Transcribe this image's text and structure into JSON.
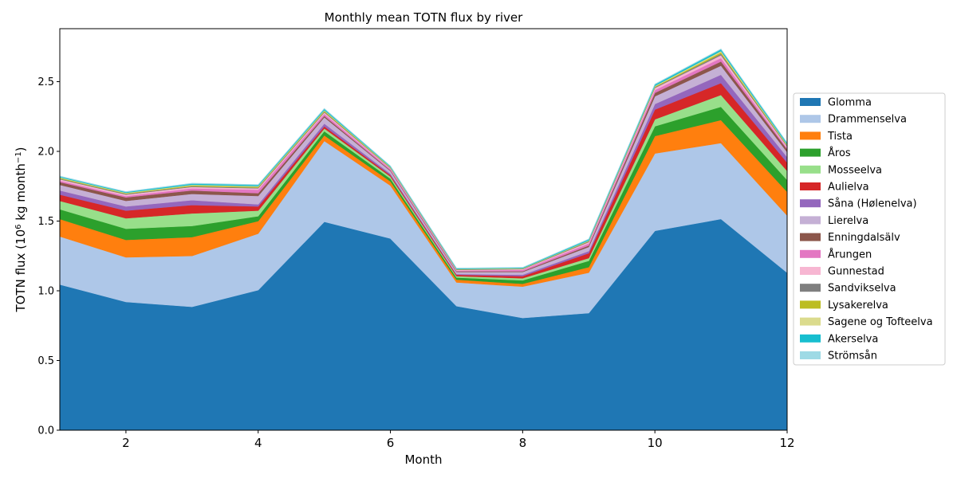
{
  "chart_data": {
    "type": "area",
    "stacked": true,
    "title": "Monthly mean TOTN flux by river",
    "xlabel": "Month",
    "ylabel_main": "TOTN flux (10",
    "ylabel_sup1": "6",
    "ylabel_mid": " kg month",
    "ylabel_sup2": "−1",
    "ylabel_end": ")",
    "x": [
      1,
      2,
      3,
      4,
      5,
      6,
      7,
      8,
      9,
      10,
      11,
      12
    ],
    "xlim": [
      1,
      12
    ],
    "ylim": [
      0,
      2.88
    ],
    "x_ticks": [
      2,
      4,
      6,
      8,
      10,
      12
    ],
    "x_tick_labels": [
      "2",
      "4",
      "6",
      "8",
      "10",
      "12"
    ],
    "y_ticks": [
      0,
      0.5,
      1.0,
      1.5,
      2.0,
      2.5
    ],
    "y_tick_labels": [
      "0.0",
      "0.5",
      "1.0",
      "1.5",
      "2.0",
      "2.5"
    ],
    "legend_position": "right",
    "grid": false,
    "series": [
      {
        "name": "Glomma",
        "color": "#1f77b4",
        "values": [
          1.045,
          0.92,
          0.885,
          1.005,
          1.495,
          1.375,
          0.89,
          0.805,
          0.84,
          1.43,
          1.515,
          1.13
        ]
      },
      {
        "name": "Drammenselva",
        "color": "#aec7e8",
        "values": [
          0.345,
          0.32,
          0.365,
          0.405,
          0.58,
          0.38,
          0.17,
          0.225,
          0.29,
          0.555,
          0.545,
          0.41
        ]
      },
      {
        "name": "Tista",
        "color": "#ff7f0e",
        "values": [
          0.125,
          0.125,
          0.135,
          0.09,
          0.04,
          0.03,
          0.02,
          0.02,
          0.04,
          0.125,
          0.165,
          0.17
        ]
      },
      {
        "name": "Åros",
        "color": "#2ca02c",
        "values": [
          0.07,
          0.08,
          0.08,
          0.035,
          0.03,
          0.02,
          0.015,
          0.025,
          0.045,
          0.07,
          0.095,
          0.085
        ]
      },
      {
        "name": "Mosseelva",
        "color": "#98df8a",
        "values": [
          0.06,
          0.075,
          0.09,
          0.04,
          0.02,
          0.015,
          0.01,
          0.015,
          0.02,
          0.05,
          0.085,
          0.065
        ]
      },
      {
        "name": "Aulielva",
        "color": "#d62728",
        "values": [
          0.045,
          0.055,
          0.06,
          0.03,
          0.015,
          0.01,
          0.01,
          0.015,
          0.035,
          0.07,
          0.085,
          0.06
        ]
      },
      {
        "name": "Såna (Hølenelva)",
        "color": "#9467bd",
        "values": [
          0.03,
          0.03,
          0.035,
          0.015,
          0.02,
          0.01,
          0.005,
          0.01,
          0.015,
          0.04,
          0.06,
          0.04
        ]
      },
      {
        "name": "Lierelva",
        "color": "#c5b0d5",
        "values": [
          0.04,
          0.04,
          0.045,
          0.06,
          0.045,
          0.02,
          0.015,
          0.02,
          0.03,
          0.055,
          0.065,
          0.035
        ]
      },
      {
        "name": "Enningdalsälv",
        "color": "#8c564b",
        "values": [
          0.02,
          0.025,
          0.025,
          0.02,
          0.01,
          0.005,
          0.005,
          0.005,
          0.01,
          0.025,
          0.03,
          0.02
        ]
      },
      {
        "name": "Årungen",
        "color": "#e377c2",
        "values": [
          0.01,
          0.01,
          0.015,
          0.025,
          0.015,
          0.01,
          0.005,
          0.01,
          0.015,
          0.02,
          0.025,
          0.01
        ]
      },
      {
        "name": "Gunnestad",
        "color": "#f7b6d2",
        "values": [
          0.01,
          0.01,
          0.01,
          0.01,
          0.01,
          0.005,
          0.005,
          0.005,
          0.01,
          0.015,
          0.02,
          0.01
        ]
      },
      {
        "name": "Sandvikselva",
        "color": "#7f7f7f",
        "values": [
          0.005,
          0.005,
          0.005,
          0.005,
          0.005,
          0.003,
          0.003,
          0.003,
          0.005,
          0.005,
          0.01,
          0.005
        ]
      },
      {
        "name": "Lysakerelva",
        "color": "#bcbd22",
        "values": [
          0.005,
          0.004,
          0.006,
          0.006,
          0.006,
          0.003,
          0.002,
          0.002,
          0.003,
          0.005,
          0.01,
          0.005
        ]
      },
      {
        "name": "Sagene og Tofteelva",
        "color": "#dbdb8d",
        "values": [
          0.004,
          0.004,
          0.005,
          0.005,
          0.005,
          0.003,
          0.002,
          0.002,
          0.003,
          0.005,
          0.01,
          0.005
        ]
      },
      {
        "name": "Akerselva",
        "color": "#17becf",
        "values": [
          0.006,
          0.006,
          0.008,
          0.008,
          0.009,
          0.005,
          0.004,
          0.004,
          0.008,
          0.01,
          0.012,
          0.01
        ]
      },
      {
        "name": "Strömsån",
        "color": "#9edae5",
        "values": [
          0.003,
          0.003,
          0.003,
          0.003,
          0.003,
          0.002,
          0.002,
          0.002,
          0.003,
          0.003,
          0.003,
          0.003
        ]
      }
    ]
  }
}
